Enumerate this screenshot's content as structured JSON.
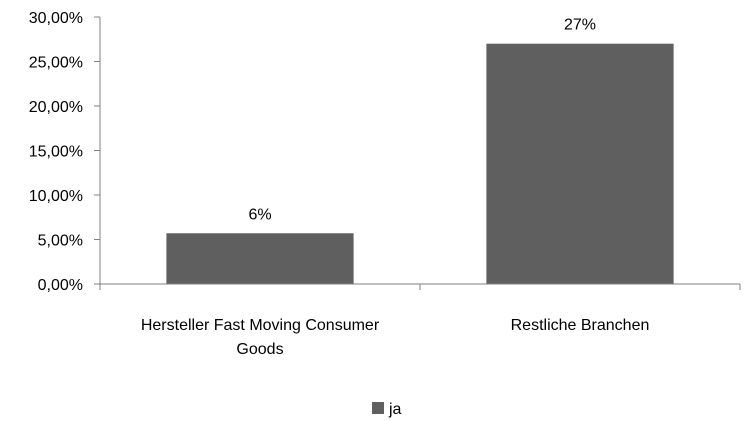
{
  "chart_data": {
    "type": "bar",
    "categories": [
      [
        "Hersteller Fast Moving Consumer",
        "Goods"
      ],
      [
        "Restliche Branchen"
      ]
    ],
    "series": [
      {
        "name": "ja",
        "values": [
          0.057,
          0.27
        ],
        "data_labels": [
          "6%",
          "27%"
        ],
        "color": "#5f5f5f"
      }
    ],
    "ylim": [
      0,
      0.3
    ],
    "y_ticks": [
      0,
      0.05,
      0.1,
      0.15,
      0.2,
      0.25,
      0.3
    ],
    "y_tick_labels": [
      "0,00%",
      "5,00%",
      "10,00%",
      "15,00%",
      "20,00%",
      "25,00%",
      "30,00%"
    ],
    "title": "",
    "xlabel": "",
    "ylabel": "",
    "grid": false,
    "legend_position": "bottom",
    "colors": {
      "axis": "#808080",
      "bar": "#5f5f5f"
    }
  }
}
